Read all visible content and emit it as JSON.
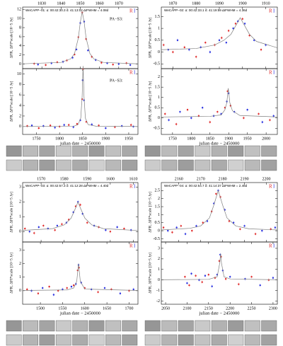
{
  "chart_data": [
    {
      "type": "scatter",
      "title": "WeCAPP−01:  α: 00:42:30.3  δ: 41:13:02  ΔtFWHM = 4.08d",
      "annotation": "PA−S3:",
      "ylabel": "ΔFR, ΔFI*scale [10−5 Jy]",
      "xtick_side": "top",
      "xlim": [
        1820,
        1880
      ],
      "xticks": [
        1830,
        1840,
        1850,
        1860,
        1870
      ],
      "ylim": [
        -1,
        12.5
      ],
      "yticks": [
        0,
        2,
        4,
        6,
        8,
        10,
        12
      ],
      "series": [
        {
          "name": "R",
          "color": "#e02828",
          "x": [
            1826,
            1832,
            1838,
            1843,
            1847,
            1849,
            1851,
            1853,
            1856,
            1861,
            1867,
            1874
          ],
          "values": [
            0.1,
            -0.2,
            0.4,
            0.8,
            2.1,
            5.9,
            11.3,
            5.5,
            1.6,
            0.3,
            -0.1,
            0.2
          ]
        },
        {
          "name": "I",
          "color": "#2830e0",
          "x": [
            1828,
            1835,
            1841,
            1846,
            1848,
            1850,
            1852,
            1854,
            1858,
            1864,
            1870,
            1876
          ],
          "values": [
            -0.1,
            0.2,
            0.5,
            1.4,
            3.2,
            9.0,
            9.3,
            3.0,
            0.9,
            0.2,
            0.0,
            -0.2
          ]
        },
        {
          "color": "#808080",
          "mode": "line",
          "x": [
            1820,
            1840,
            1845,
            1847,
            1849,
            1850,
            1851,
            1852,
            1853,
            1855,
            1857,
            1862,
            1880
          ],
          "values": [
            0.06,
            0.37,
            1.15,
            2.3,
            5.75,
            9.2,
            11.5,
            9.2,
            5.75,
            2.3,
            1.15,
            0.37,
            0.05
          ]
        }
      ]
    },
    {
      "type": "scatter",
      "annotation": "PA−S3:",
      "xlabel": "julian date − 2450000",
      "ylabel": "ΔFR, ΔFI*scale [10−5 Jy]",
      "xtick_side": "bottom",
      "xlim": [
        1720,
        1970
      ],
      "xticks": [
        1750,
        1800,
        1850,
        1900,
        1950
      ],
      "ylim": [
        -1.5,
        11
      ],
      "yticks": [
        0,
        2,
        4,
        6,
        8,
        10
      ],
      "series": [
        {
          "name": "R",
          "color": "#e02828",
          "x": [
            1730,
            1755,
            1780,
            1800,
            1820,
            1838,
            1849,
            1851,
            1858,
            1885,
            1920,
            1955
          ],
          "values": [
            0.1,
            -0.3,
            0.2,
            0.0,
            0.3,
            0.5,
            5.2,
            10.9,
            0.9,
            0.2,
            -0.1,
            0.3
          ]
        },
        {
          "name": "I",
          "color": "#2830e0",
          "x": [
            1740,
            1765,
            1790,
            1810,
            1830,
            1845,
            1850,
            1853,
            1870,
            1900,
            1935,
            1960
          ],
          "values": [
            0.2,
            0.1,
            -0.2,
            0.3,
            -0.1,
            1.2,
            8.8,
            5.0,
            0.4,
            -0.3,
            0.1,
            0.0
          ]
        },
        {
          "color": "#808080",
          "mode": "line",
          "x": [
            1720,
            1800,
            1830,
            1840,
            1846,
            1849,
            1851,
            1853,
            1856,
            1862,
            1880,
            1970
          ],
          "values": [
            0.01,
            0.02,
            0.04,
            0.37,
            1.59,
            5.75,
            11.5,
            5.75,
            1.59,
            0.37,
            0.05,
            0.01
          ]
        }
      ]
    },
    {
      "type": "scatter",
      "title": "WeCAPP−02:  α: 00:42:33.1  δ: 41:19:59  ΔtFWHM = 4.36d",
      "ylabel": "ΔFR, ΔFI*scale [10−5 Jy]",
      "xtick_side": "top",
      "xlim": [
        1865,
        1915
      ],
      "xticks": [
        1870,
        1880,
        1890,
        1900,
        1910
      ],
      "ylim": [
        -0.7,
        1.9
      ],
      "yticks": [
        -0.5,
        0,
        0.5,
        1,
        1.5
      ],
      "series": [
        {
          "name": "R",
          "color": "#e02828",
          "x": [
            1866,
            1870,
            1875,
            1880,
            1884,
            1888,
            1891,
            1894,
            1897,
            1900,
            1903,
            1908
          ],
          "values": [
            0.3,
            0.0,
            0.2,
            -0.2,
            0.4,
            0.3,
            0.6,
            0.9,
            1.2,
            1.4,
            0.7,
            0.1
          ]
        },
        {
          "name": "I",
          "color": "#2830e0",
          "x": [
            1868,
            1872,
            1877,
            1882,
            1886,
            1890,
            1893,
            1896,
            1898,
            1901,
            1905,
            1910
          ],
          "values": [
            0.1,
            0.5,
            0.1,
            0.2,
            0.0,
            0.5,
            0.4,
            1.0,
            1.3,
            1.2,
            0.5,
            0.3
          ]
        },
        {
          "color": "#808080",
          "mode": "line",
          "x": [
            1865,
            1880,
            1888,
            1892,
            1895,
            1897,
            1899,
            1901,
            1903,
            1906,
            1915
          ],
          "values": [
            0.1,
            0.15,
            0.3,
            0.5,
            0.75,
            1.1,
            1.45,
            1.1,
            0.75,
            0.45,
            0.18
          ]
        }
      ]
    },
    {
      "type": "scatter",
      "xlabel": "julian date − 2450000",
      "ylabel": "ΔFR, ΔFI*scale [10−5 Jy]",
      "xtick_side": "bottom",
      "xlim": [
        1720,
        2030
      ],
      "xticks": [
        1750,
        1800,
        1850,
        1900,
        1950,
        2000
      ],
      "ylim": [
        -0.8,
        2.4
      ],
      "yticks": [
        -0.5,
        0,
        0.5,
        1,
        1.5,
        2
      ],
      "series": [
        {
          "name": "R",
          "color": "#e02828",
          "x": [
            1730,
            1760,
            1790,
            1820,
            1850,
            1870,
            1890,
            1897,
            1905,
            1940,
            1980,
            2010
          ],
          "values": [
            0.2,
            -0.3,
            0.4,
            0.1,
            -0.2,
            0.3,
            0.5,
            1.3,
            0.6,
            0.0,
            0.2,
            -0.1
          ]
        },
        {
          "name": "I",
          "color": "#2830e0",
          "x": [
            1740,
            1770,
            1800,
            1830,
            1860,
            1880,
            1895,
            1900,
            1915,
            1950,
            1990,
            2020
          ],
          "values": [
            -0.1,
            0.3,
            0.0,
            0.5,
            0.1,
            0.2,
            0.8,
            1.2,
            0.3,
            0.4,
            -0.2,
            0.1
          ]
        },
        {
          "color": "#808080",
          "mode": "line",
          "x": [
            1720,
            1850,
            1880,
            1890,
            1895,
            1899,
            1903,
            1910,
            1930,
            2030
          ],
          "values": [
            0.05,
            0.08,
            0.15,
            0.4,
            0.75,
            1.45,
            0.75,
            0.35,
            0.12,
            0.05
          ]
        }
      ]
    },
    {
      "type": "scatter",
      "title": "WeCAPP−03:  α: 00:42:57.3  δ: 41:12:28  ΔtFWHM = 4.40d",
      "ylabel": "ΔFR, ΔFI*scale [10−5 Jy]",
      "xtick_side": "top",
      "xlim": [
        1562,
        1612
      ],
      "xticks": [
        1570,
        1580,
        1590,
        1600,
        1610
      ],
      "ylim": [
        -0.7,
        3.3
      ],
      "yticks": [
        0,
        1,
        2,
        3
      ],
      "series": [
        {
          "name": "R",
          "color": "#e02828",
          "x": [
            1563,
            1567,
            1571,
            1576,
            1579,
            1582,
            1585,
            1587,
            1590,
            1595,
            1600,
            1606
          ],
          "values": [
            0.2,
            -0.1,
            0.4,
            0.1,
            0.5,
            0.8,
            1.7,
            1.8,
            0.6,
            0.3,
            0.0,
            0.2
          ]
        },
        {
          "name": "I",
          "color": "#2830e0",
          "x": [
            1565,
            1569,
            1573,
            1577,
            1581,
            1584,
            1586,
            1588,
            1593,
            1598,
            1603,
            1609
          ],
          "values": [
            0.0,
            0.3,
            0.2,
            0.4,
            0.6,
            1.3,
            2.0,
            1.2,
            0.4,
            0.1,
            0.3,
            0.1
          ]
        },
        {
          "color": "#808080",
          "mode": "line",
          "x": [
            1562,
            1575,
            1580,
            1583,
            1585,
            1586,
            1587,
            1589,
            1592,
            1597,
            1612
          ],
          "values": [
            0.08,
            0.2,
            0.45,
            0.9,
            1.6,
            2.0,
            1.6,
            0.9,
            0.45,
            0.2,
            0.07
          ]
        }
      ]
    },
    {
      "type": "scatter",
      "xlabel": "julian date − 2450000",
      "ylabel": "ΔFR, ΔFI*scale [10−5 Jy]",
      "xtick_side": "bottom",
      "xlim": [
        1460,
        1720
      ],
      "xticks": [
        1500,
        1550,
        1600,
        1650,
        1700
      ],
      "ylim": [
        -1,
        3.6
      ],
      "yticks": [
        0,
        1,
        2,
        3
      ],
      "series": [
        {
          "name": "R",
          "color": "#e02828",
          "x": [
            1470,
            1495,
            1520,
            1540,
            1560,
            1575,
            1584,
            1587,
            1600,
            1630,
            1660,
            1700
          ],
          "values": [
            0.1,
            -0.2,
            0.3,
            0.0,
            0.2,
            0.4,
            1.5,
            1.7,
            0.2,
            -0.1,
            0.1,
            0.0
          ]
        },
        {
          "name": "I",
          "color": "#2830e0",
          "x": [
            1480,
            1505,
            1530,
            1550,
            1570,
            1580,
            1586,
            1592,
            1615,
            1645,
            1680,
            1710
          ],
          "values": [
            0.0,
            0.2,
            -0.3,
            0.1,
            0.3,
            0.5,
            1.9,
            0.6,
            0.1,
            0.2,
            -0.2,
            0.1
          ]
        },
        {
          "color": "#808080",
          "mode": "line",
          "x": [
            1460,
            1560,
            1575,
            1582,
            1586,
            1590,
            1600,
            1720
          ],
          "values": [
            0.02,
            0.06,
            0.2,
            0.7,
            2.0,
            0.7,
            0.12,
            0.02
          ]
        }
      ]
    },
    {
      "type": "scatter",
      "title": "WeCAPP−04:  α: 00:42:54.7  δ: 41:14:37  ΔtFWHM = 2.48d",
      "ylabel": "ΔFR, ΔFI*scale [10−5 Jy]",
      "xtick_side": "top",
      "xlim": [
        2152,
        2205
      ],
      "xticks": [
        2160,
        2170,
        2180,
        2190,
        2200
      ],
      "ylim": [
        -0.7,
        3.0
      ],
      "yticks": [
        -0.5,
        0,
        0.5,
        1,
        1.5,
        2,
        2.5
      ],
      "series": [
        {
          "name": "R",
          "color": "#e02828",
          "x": [
            2153,
            2157,
            2161,
            2166,
            2171,
            2175,
            2177,
            2179,
            2183,
            2188,
            2195,
            2202
          ],
          "values": [
            0.2,
            -0.1,
            0.3,
            0.0,
            0.5,
            1.2,
            2.3,
            2.1,
            0.6,
            0.1,
            -0.2,
            0.1
          ]
        },
        {
          "name": "I",
          "color": "#2830e0",
          "x": [
            2155,
            2159,
            2163,
            2168,
            2173,
            2176,
            2178,
            2181,
            2185,
            2190,
            2198,
            2204
          ],
          "values": [
            0.0,
            0.2,
            -0.2,
            0.3,
            0.6,
            1.7,
            2.5,
            1.3,
            0.5,
            0.3,
            0.0,
            0.2
          ]
        },
        {
          "color": "#808080",
          "mode": "line",
          "x": [
            2152,
            2165,
            2170,
            2174,
            2176,
            2178,
            2180,
            2182,
            2186,
            2192,
            2205
          ],
          "values": [
            0.05,
            0.15,
            0.3,
            0.8,
            1.6,
            2.5,
            1.6,
            0.8,
            0.3,
            0.12,
            0.05
          ]
        }
      ]
    },
    {
      "type": "scatter",
      "xlabel": "julian date − 2450000",
      "ylabel": "ΔFR, ΔFI*scale [10−5 Jy]",
      "xtick_side": "bottom",
      "xlim": [
        2040,
        2310
      ],
      "xticks": [
        2050,
        2100,
        2150,
        2200,
        2250,
        2300
      ],
      "ylim": [
        -2.3,
        3.6
      ],
      "yticks": [
        -2,
        -1,
        0,
        1,
        2,
        3
      ],
      "series": [
        {
          "name": "R",
          "color": "#e02828",
          "x": [
            2095,
            2105,
            2120,
            2135,
            2150,
            2165,
            2175,
            2179,
            2190,
            2220,
            2250,
            2290
          ],
          "values": [
            0.3,
            -0.5,
            0.4,
            -0.2,
            0.5,
            0.2,
            1.8,
            2.2,
            0.1,
            -0.4,
            0.3,
            0.0
          ]
        },
        {
          "name": "I",
          "color": "#2830e0",
          "x": [
            2100,
            2110,
            2128,
            2142,
            2158,
            2170,
            2177,
            2183,
            2200,
            2235,
            2270,
            2300
          ],
          "values": [
            -0.3,
            0.6,
            0.0,
            0.4,
            -0.6,
            0.5,
            2.4,
            0.9,
            0.3,
            0.1,
            -0.5,
            0.2
          ]
        },
        {
          "color": "#808080",
          "mode": "line",
          "x": [
            2040,
            2150,
            2170,
            2176,
            2178,
            2180,
            2186,
            2200,
            2310
          ],
          "values": [
            0.02,
            0.06,
            0.3,
            1.6,
            2.5,
            1.6,
            0.3,
            0.1,
            0.02
          ]
        }
      ]
    }
  ]
}
